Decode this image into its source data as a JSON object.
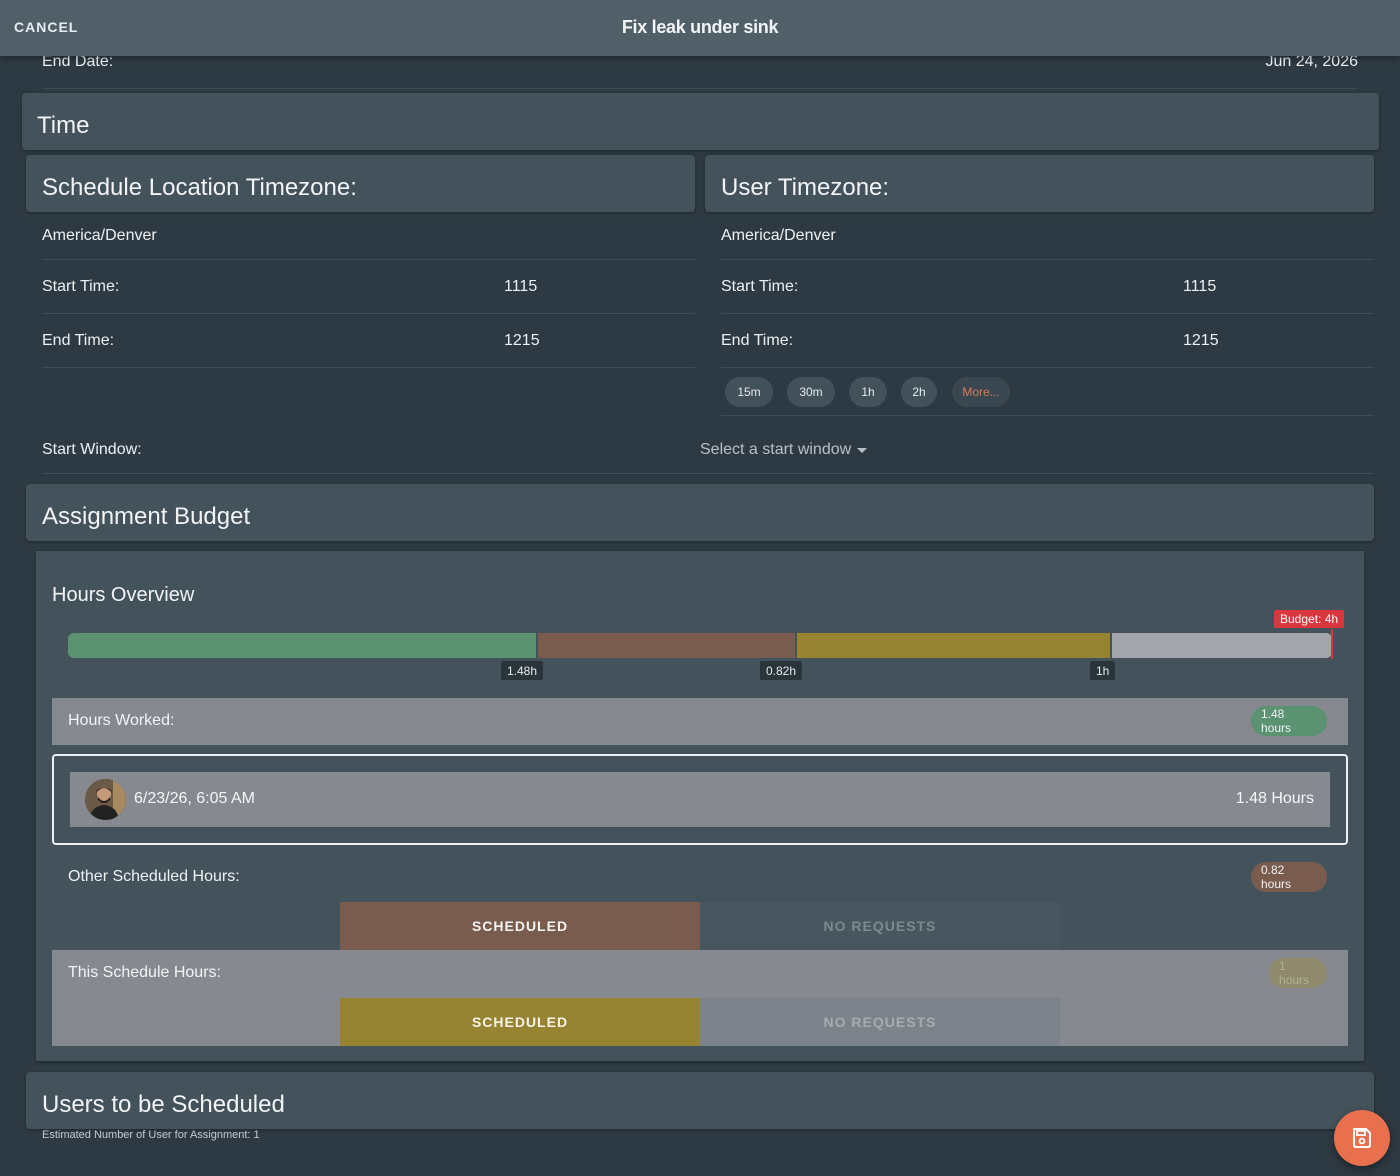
{
  "header": {
    "cancel_label": "CANCEL",
    "title": "Fix leak under sink"
  },
  "end_date": {
    "label": "End Date:",
    "value": "Jun 24, 2026"
  },
  "time": {
    "title": "Time",
    "schedule_location": {
      "title": "Schedule Location Timezone:",
      "timezone": "America/Denver",
      "start_label": "Start Time:",
      "start_value": "1115",
      "end_label": "End Time:",
      "end_value": "1215"
    },
    "user": {
      "title": "User Timezone:",
      "timezone": "America/Denver",
      "start_label": "Start Time:",
      "start_value": "1115",
      "end_label": "End Time:",
      "end_value": "1215",
      "duration_chips": [
        "15m",
        "30m",
        "1h",
        "2h",
        "More..."
      ]
    },
    "start_window": {
      "label": "Start Window:",
      "placeholder": "Select a start window"
    }
  },
  "budget": {
    "title": "Assignment Budget",
    "overview_title": "Hours Overview",
    "budget_badge": "Budget: 4h",
    "bar_segments": [
      {
        "name": "worked",
        "hours": 1.48,
        "label": "1.48h",
        "color": "#5a9272"
      },
      {
        "name": "other-scheduled",
        "hours": 0.82,
        "label": "0.82h",
        "color": "#795c4d"
      },
      {
        "name": "this-schedule",
        "hours": 1.0,
        "label": "1h",
        "color": "#978432"
      },
      {
        "name": "remaining",
        "hours": 0.7,
        "label": "",
        "color": "#a3a6ad"
      }
    ],
    "hours_worked": {
      "label": "Hours Worked:",
      "pill": "1.48 hours",
      "entry_time": "6/23/26, 6:05 AM",
      "entry_hours": "1.48 Hours"
    },
    "other_scheduled": {
      "label": "Other Scheduled Hours:",
      "pill": "0.82 hours",
      "status_scheduled": "SCHEDULED",
      "status_requests": "NO REQUESTS"
    },
    "this_schedule": {
      "label": "This Schedule Hours:",
      "pill": "1 hours",
      "status_scheduled": "SCHEDULED",
      "status_requests": "NO REQUESTS"
    }
  },
  "users": {
    "title": "Users to be Scheduled",
    "estimate": "Estimated Number of User for Assignment: 1"
  },
  "colors": {
    "accent_orange": "#e8704f",
    "worked_green": "#5a9272",
    "other_brown": "#795c4d",
    "this_gold": "#978432",
    "budget_red": "#d9363e"
  }
}
